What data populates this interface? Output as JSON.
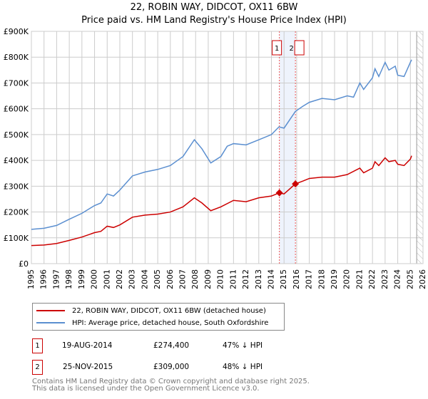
{
  "chart_data": {
    "type": "line",
    "title": "22, ROBIN WAY, DIDCOT, OX11 6BW",
    "subtitle": "Price paid vs. HM Land Registry's House Price Index (HPI)",
    "xlim": [
      1995,
      2026
    ],
    "ylim": [
      0,
      900000
    ],
    "x_ticks": [
      "1995",
      "1996",
      "1997",
      "1998",
      "1999",
      "2000",
      "2001",
      "2002",
      "2003",
      "2004",
      "2005",
      "2006",
      "2007",
      "2008",
      "2009",
      "2010",
      "2011",
      "2012",
      "2013",
      "2014",
      "2015",
      "2016",
      "2017",
      "2018",
      "2019",
      "2020",
      "2021",
      "2022",
      "2023",
      "2024",
      "2025",
      "2026"
    ],
    "y_ticks": [
      {
        "v": 0,
        "l": "£0"
      },
      {
        "v": 100000,
        "l": "£100K"
      },
      {
        "v": 200000,
        "l": "£200K"
      },
      {
        "v": 300000,
        "l": "£300K"
      },
      {
        "v": 400000,
        "l": "£400K"
      },
      {
        "v": 500000,
        "l": "£500K"
      },
      {
        "v": 600000,
        "l": "£600K"
      },
      {
        "v": 700000,
        "l": "£700K"
      },
      {
        "v": 800000,
        "l": "£800K"
      },
      {
        "v": 900000,
        "l": "£900K"
      }
    ],
    "grid": true,
    "future_hatch_from": 2025.5,
    "shaded_span": [
      2014.63,
      2015.9
    ],
    "series": [
      {
        "name": "22, ROBIN WAY, DIDCOT, OX11 6BW (detached house)",
        "color": "#cc0000",
        "x": [
          1995,
          1996,
          1997,
          1998,
          1999,
          2000,
          2000.5,
          2001,
          2001.5,
          2002,
          2003,
          2004,
          2005,
          2006,
          2007,
          2007.9,
          2008.5,
          2009.2,
          2010,
          2011,
          2012,
          2013,
          2014,
          2014.63,
          2015,
          2015.9,
          2016.5,
          2017,
          2018,
          2019,
          2020,
          2021,
          2021.3,
          2022,
          2022.2,
          2022.5,
          2023,
          2023.3,
          2023.8,
          2024,
          2024.5,
          2025,
          2025.1
        ],
        "y": [
          70000,
          72000,
          78000,
          90000,
          103000,
          120000,
          125000,
          145000,
          140000,
          150000,
          180000,
          188000,
          192000,
          200000,
          220000,
          255000,
          235000,
          205000,
          220000,
          245000,
          240000,
          255000,
          262000,
          274400,
          270000,
          309000,
          320000,
          330000,
          335000,
          335000,
          345000,
          370000,
          352000,
          370000,
          395000,
          380000,
          410000,
          395000,
          400000,
          385000,
          380000,
          405000,
          418000
        ]
      },
      {
        "name": "HPI: Average price, detached house, South Oxfordshire",
        "color": "#5b8fd0",
        "x": [
          1995,
          1996,
          1997,
          1998,
          1999,
          2000,
          2000.5,
          2001,
          2001.5,
          2002,
          2003,
          2004,
          2005,
          2006,
          2007,
          2007.9,
          2008.5,
          2009.2,
          2010,
          2010.5,
          2011,
          2012,
          2013,
          2014,
          2014.6,
          2015,
          2015.9,
          2016.5,
          2017,
          2018,
          2019,
          2020,
          2020.5,
          2021,
          2021.3,
          2022,
          2022.2,
          2022.5,
          2023,
          2023.3,
          2023.8,
          2024,
          2024.5,
          2025,
          2025.1
        ],
        "y": [
          133000,
          137000,
          148000,
          172000,
          195000,
          225000,
          235000,
          270000,
          262000,
          285000,
          340000,
          355000,
          365000,
          380000,
          415000,
          480000,
          445000,
          390000,
          415000,
          455000,
          465000,
          460000,
          480000,
          500000,
          530000,
          525000,
          590000,
          610000,
          625000,
          640000,
          635000,
          650000,
          645000,
          700000,
          675000,
          720000,
          755000,
          725000,
          780000,
          750000,
          765000,
          730000,
          725000,
          780000,
          790000
        ]
      }
    ],
    "sales": [
      {
        "label": "1",
        "x": 2014.63,
        "y": 274400
      },
      {
        "label": "2",
        "x": 2015.9,
        "y": 309000
      }
    ]
  },
  "transactions": [
    {
      "n": "1",
      "date": "19-AUG-2014",
      "price": "£274,400",
      "delta": "47% ↓ HPI"
    },
    {
      "n": "2",
      "date": "25-NOV-2015",
      "price": "£309,000",
      "delta": "48% ↓ HPI"
    }
  ],
  "footer": {
    "line1": "Contains HM Land Registry data © Crown copyright and database right 2025.",
    "line2": "This data is licensed under the Open Government Licence v3.0."
  }
}
